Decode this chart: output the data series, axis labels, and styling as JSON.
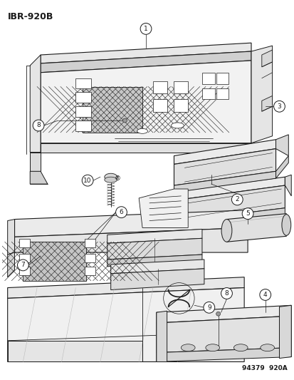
{
  "title": "IBR-920B",
  "footer": "94379  920A",
  "bg_color": "#ffffff",
  "line_color": "#1a1a1a",
  "title_fontsize": 9,
  "footer_fontsize": 6.5,
  "callout_fontsize": 6.5,
  "fig_width": 4.14,
  "fig_height": 5.33,
  "dpi": 100
}
